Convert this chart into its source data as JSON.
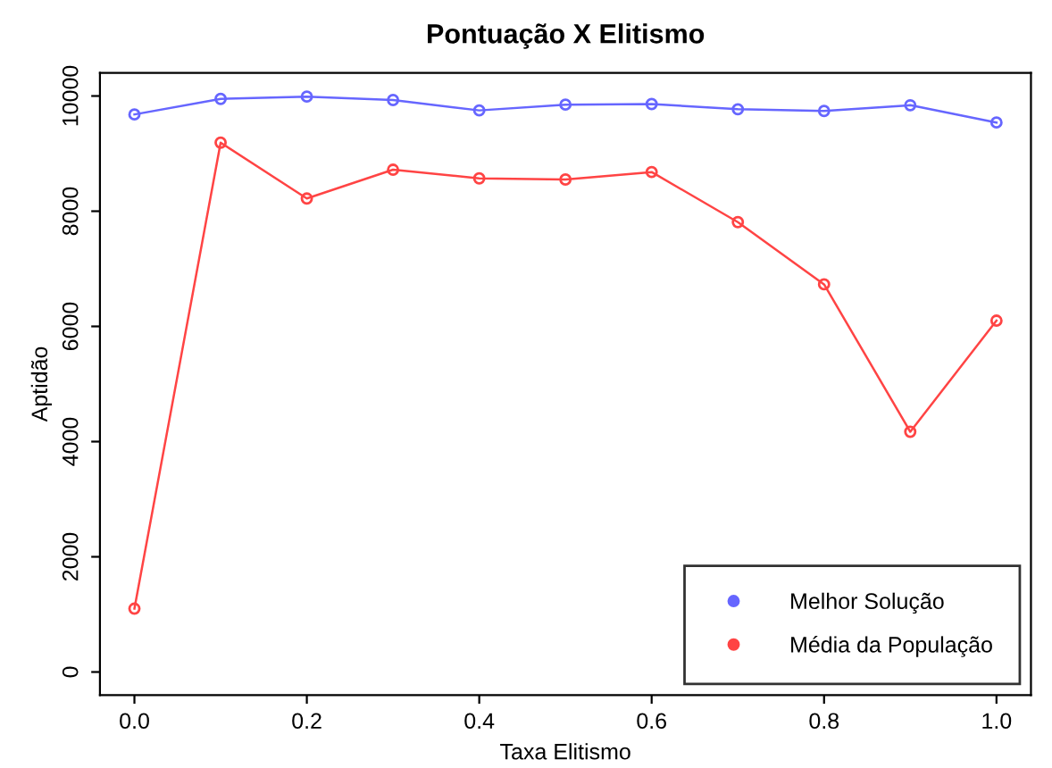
{
  "chart_data": {
    "type": "line",
    "title": "Pontuação X Elitismo",
    "xlabel": "Taxa Elitismo",
    "ylabel": "Aptidão",
    "x": [
      0.0,
      0.1,
      0.2,
      0.3,
      0.4,
      0.5,
      0.6,
      0.7,
      0.8,
      0.9,
      1.0
    ],
    "series": [
      {
        "name": "Melhor Solução",
        "color": "#6666ff",
        "values": [
          9680,
          9950,
          9990,
          9930,
          9750,
          9850,
          9860,
          9770,
          9740,
          9840,
          9540
        ]
      },
      {
        "name": "Média da População",
        "color": "#ff4444",
        "values": [
          1100,
          9190,
          8220,
          8720,
          8570,
          8550,
          8680,
          7810,
          6730,
          4170,
          6100
        ]
      }
    ],
    "xlim": [
      -0.04,
      1.04
    ],
    "xticks": [
      {
        "value": 0,
        "label": "0.0"
      },
      {
        "value": 0.2,
        "label": "0.2"
      },
      {
        "value": 0.4,
        "label": "0.4"
      },
      {
        "value": 0.6,
        "label": "0.6"
      },
      {
        "value": 0.8,
        "label": "0.8"
      },
      {
        "value": 1,
        "label": "1.0"
      }
    ],
    "ylim": [
      -400,
      10400
    ],
    "yticks": [
      0,
      2000,
      4000,
      6000,
      8000,
      10000
    ],
    "marker": "circle",
    "line_style": "solid",
    "grid": false,
    "legend": "bottom right"
  }
}
